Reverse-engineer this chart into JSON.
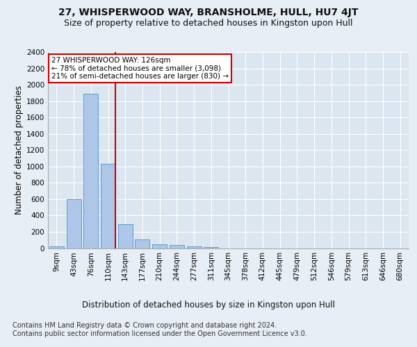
{
  "title_line1": "27, WHISPERWOOD WAY, BRANSHOLME, HULL, HU7 4JT",
  "title_line2": "Size of property relative to detached houses in Kingston upon Hull",
  "xlabel": "Distribution of detached houses by size in Kingston upon Hull",
  "ylabel": "Number of detached properties",
  "footnote": "Contains HM Land Registry data © Crown copyright and database right 2024.\nContains public sector information licensed under the Open Government Licence v3.0.",
  "bin_labels": [
    "9sqm",
    "43sqm",
    "76sqm",
    "110sqm",
    "143sqm",
    "177sqm",
    "210sqm",
    "244sqm",
    "277sqm",
    "311sqm",
    "345sqm",
    "378sqm",
    "412sqm",
    "445sqm",
    "479sqm",
    "512sqm",
    "546sqm",
    "579sqm",
    "613sqm",
    "646sqm",
    "680sqm"
  ],
  "bar_values": [
    20,
    600,
    1890,
    1030,
    290,
    110,
    50,
    35,
    25,
    10,
    0,
    0,
    0,
    0,
    0,
    0,
    0,
    0,
    0,
    0,
    0
  ],
  "bar_color": "#aec6e8",
  "bar_edge_color": "#5a9fd4",
  "property_line_x": 3.42,
  "annotation_text": "27 WHISPERWOOD WAY: 126sqm\n← 78% of detached houses are smaller (3,098)\n21% of semi-detached houses are larger (830) →",
  "annotation_box_color": "#ffffff",
  "annotation_box_edge_color": "#cc0000",
  "vline_color": "#cc0000",
  "ylim": [
    0,
    2400
  ],
  "yticks": [
    0,
    200,
    400,
    600,
    800,
    1000,
    1200,
    1400,
    1600,
    1800,
    2000,
    2200,
    2400
  ],
  "bg_color": "#e8eef5",
  "plot_bg_color": "#dce6f0",
  "grid_color": "#ffffff",
  "title1_fontsize": 10,
  "title2_fontsize": 9,
  "xlabel_fontsize": 8.5,
  "ylabel_fontsize": 8.5,
  "footnote_fontsize": 7,
  "tick_fontsize": 7.5,
  "annot_fontsize": 7.5
}
